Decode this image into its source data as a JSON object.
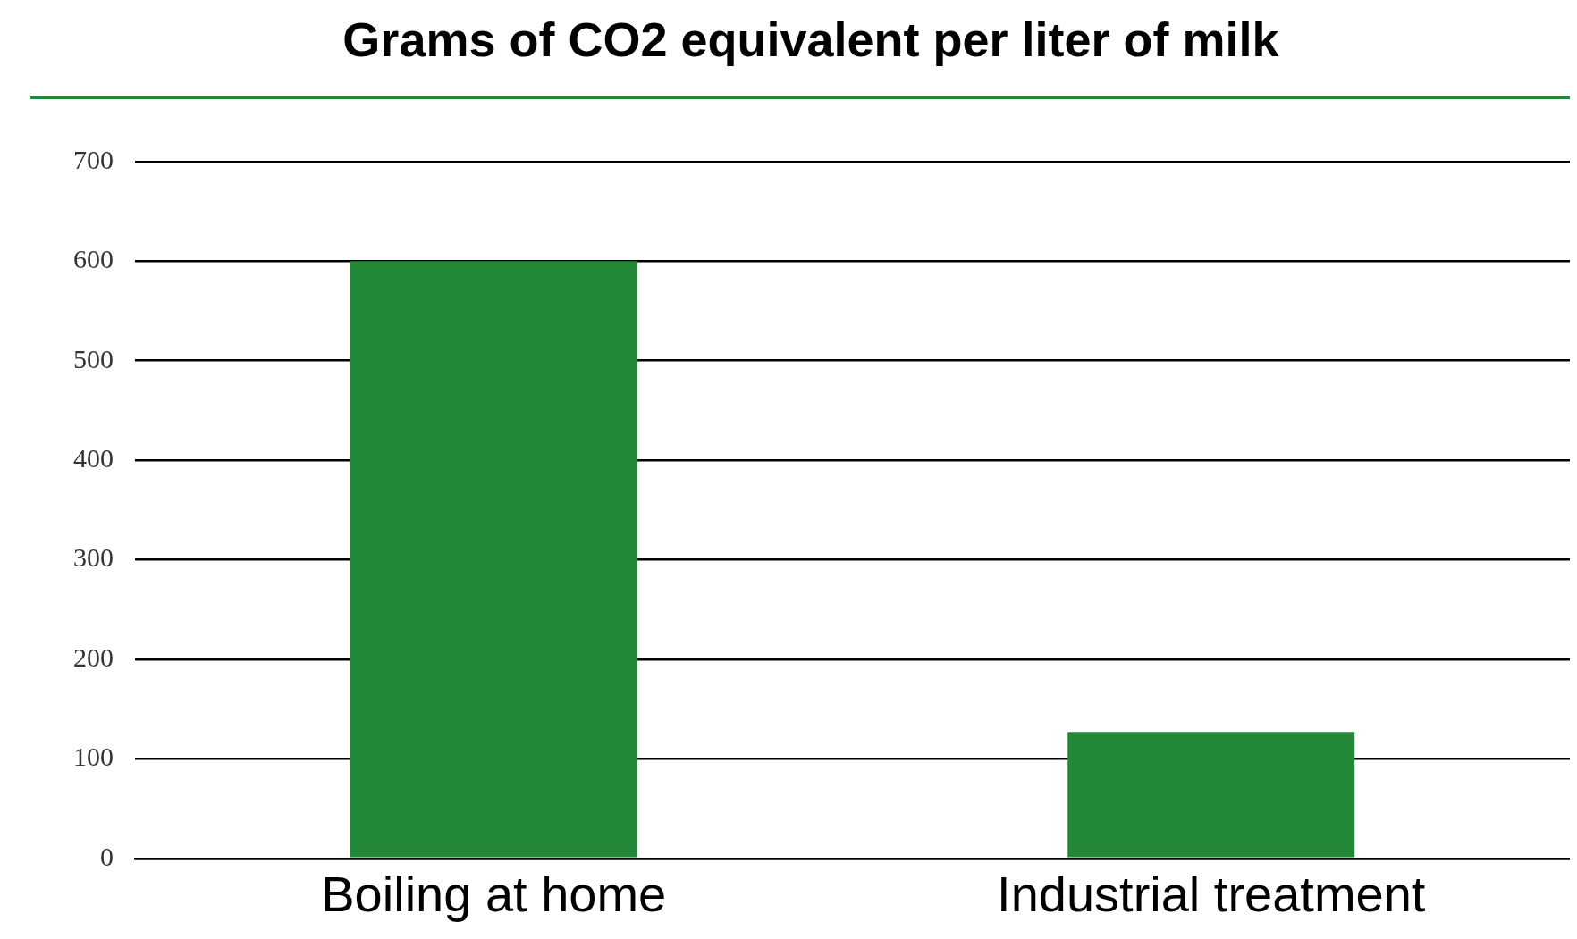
{
  "chart_data": {
    "type": "bar",
    "title": "Grams of CO2 equivalent per liter of milk",
    "categories": [
      "Boiling at home",
      "Industrial treatment"
    ],
    "values": [
      600,
      127
    ],
    "color": "#228838",
    "ylim": [
      0,
      700
    ],
    "yticks": [
      0,
      100,
      200,
      300,
      400,
      500,
      600,
      700
    ],
    "grid": "y",
    "legend": false
  }
}
